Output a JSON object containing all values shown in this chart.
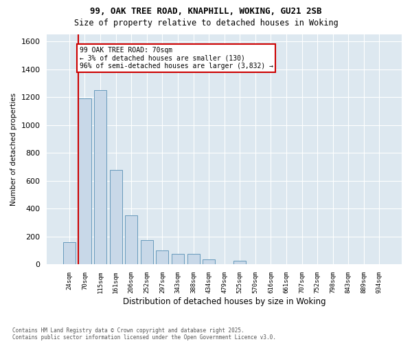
{
  "title_line1": "99, OAK TREE ROAD, KNAPHILL, WOKING, GU21 2SB",
  "title_line2": "Size of property relative to detached houses in Woking",
  "xlabel": "Distribution of detached houses by size in Woking",
  "ylabel": "Number of detached properties",
  "categories": [
    "24sqm",
    "70sqm",
    "115sqm",
    "161sqm",
    "206sqm",
    "252sqm",
    "297sqm",
    "343sqm",
    "388sqm",
    "434sqm",
    "479sqm",
    "525sqm",
    "570sqm",
    "616sqm",
    "661sqm",
    "707sqm",
    "752sqm",
    "798sqm",
    "843sqm",
    "889sqm",
    "934sqm"
  ],
  "values": [
    160,
    1190,
    1250,
    680,
    355,
    175,
    100,
    75,
    75,
    35,
    0,
    25,
    0,
    0,
    0,
    0,
    0,
    0,
    0,
    0,
    0
  ],
  "bar_color": "#c8d8e8",
  "bar_edge_color": "#6699bb",
  "highlight_bar_index": 1,
  "red_line_color": "#cc0000",
  "annotation_text": "99 OAK TREE ROAD: 70sqm\n← 3% of detached houses are smaller (130)\n96% of semi-detached houses are larger (3,832) →",
  "annotation_box_color": "white",
  "annotation_box_edge_color": "#cc0000",
  "ylim": [
    0,
    1650
  ],
  "yticks": [
    0,
    200,
    400,
    600,
    800,
    1000,
    1200,
    1400,
    1600
  ],
  "grid_color": "#c8d8e8",
  "bg_color": "#dde8f0",
  "footer_line1": "Contains HM Land Registry data © Crown copyright and database right 2025.",
  "footer_line2": "Contains public sector information licensed under the Open Government Licence v3.0."
}
